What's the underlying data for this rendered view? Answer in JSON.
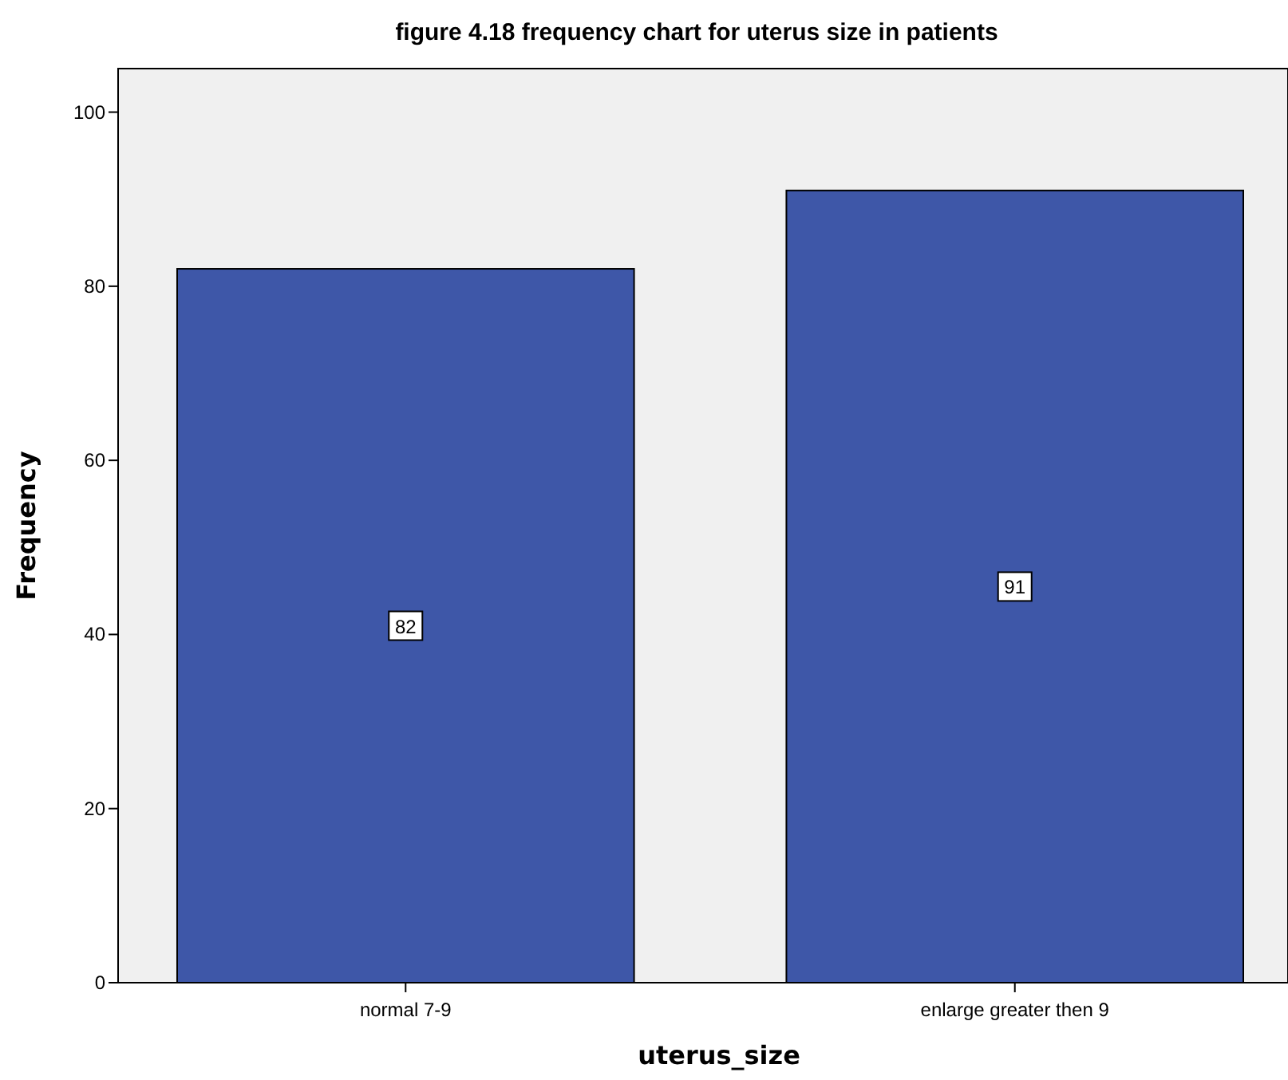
{
  "chart_data": {
    "type": "bar",
    "title": "figure 4.18 frequency chart for uterus size in patients",
    "xlabel": "uterus_size",
    "ylabel": "Frequency",
    "categories": [
      "normal 7-9",
      "enlarge greater then 9"
    ],
    "values": [
      82,
      91
    ],
    "color": "#3e57a8",
    "ylim": [
      0,
      105
    ],
    "yticks": [
      0,
      20,
      40,
      60,
      80,
      100
    ],
    "data_labels": true,
    "grid": false
  }
}
